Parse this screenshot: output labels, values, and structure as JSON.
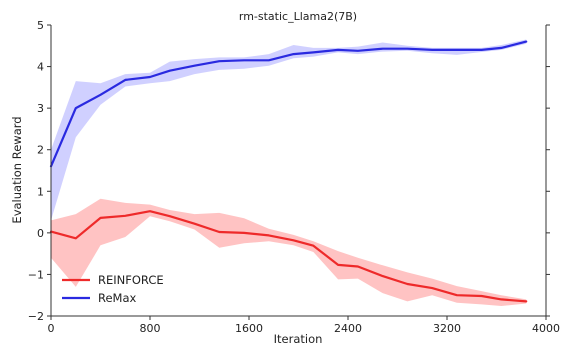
{
  "chart_data": {
    "type": "line",
    "title": "rm-static_Llama2(7B)",
    "xlabel": "Iteration",
    "ylabel": "Evaluation Reward",
    "xlim": [
      0,
      4000
    ],
    "ylim": [
      -2,
      5
    ],
    "xticks": [
      0,
      800,
      1600,
      2400,
      3200,
      4000
    ],
    "yticks": [
      -2,
      -1,
      0,
      1,
      2,
      3,
      4,
      5
    ],
    "xtick_labels": [
      "0",
      "800",
      "1600",
      "2400",
      "3200",
      "4000"
    ],
    "ytick_labels": [
      "−2",
      "−1",
      "0",
      "1",
      "2",
      "3",
      "4",
      "5"
    ],
    "grid": false,
    "legend_position": "lower-left",
    "series": [
      {
        "name": "REINFORCE",
        "color": "#ee2a2a",
        "band_color": "#ffb8b8",
        "x": [
          0,
          200,
          400,
          600,
          800,
          960,
          1160,
          1360,
          1560,
          1760,
          1960,
          2120,
          2320,
          2480,
          2680,
          2880,
          3080,
          3280,
          3480,
          3640,
          3840
        ],
        "values": [
          0.03,
          -0.13,
          0.36,
          0.41,
          0.52,
          0.4,
          0.22,
          0.02,
          0.0,
          -0.06,
          -0.18,
          -0.31,
          -0.77,
          -0.81,
          -1.04,
          -1.23,
          -1.33,
          -1.5,
          -1.52,
          -1.6,
          -1.65
        ],
        "lower": [
          -0.6,
          -1.3,
          -0.3,
          -0.1,
          0.4,
          0.28,
          0.08,
          -0.36,
          -0.25,
          -0.2,
          -0.3,
          -0.46,
          -1.12,
          -1.1,
          -1.45,
          -1.65,
          -1.5,
          -1.68,
          -1.72,
          -1.76,
          -1.7
        ],
        "upper": [
          0.3,
          0.45,
          0.82,
          0.72,
          0.68,
          0.55,
          0.45,
          0.48,
          0.35,
          0.1,
          -0.05,
          -0.2,
          -0.44,
          -0.6,
          -0.78,
          -0.95,
          -1.1,
          -1.28,
          -1.4,
          -1.5,
          -1.6
        ]
      },
      {
        "name": "ReMax",
        "color": "#2a2ae0",
        "band_color": "#c8c8ff",
        "x": [
          0,
          200,
          400,
          600,
          800,
          960,
          1160,
          1360,
          1560,
          1760,
          1960,
          2120,
          2320,
          2480,
          2680,
          2880,
          3080,
          3280,
          3480,
          3640,
          3840
        ],
        "values": [
          1.6,
          3.0,
          3.32,
          3.68,
          3.75,
          3.9,
          4.02,
          4.13,
          4.15,
          4.15,
          4.3,
          4.34,
          4.4,
          4.38,
          4.43,
          4.43,
          4.4,
          4.4,
          4.4,
          4.45,
          4.6
        ],
        "lower": [
          0.3,
          2.3,
          3.08,
          3.52,
          3.6,
          3.65,
          3.82,
          3.92,
          3.95,
          4.02,
          4.2,
          4.24,
          4.34,
          4.3,
          4.36,
          4.38,
          4.32,
          4.28,
          4.35,
          4.4,
          4.55
        ],
        "upper": [
          2.0,
          3.65,
          3.6,
          3.82,
          3.85,
          4.12,
          4.18,
          4.22,
          4.22,
          4.3,
          4.52,
          4.45,
          4.45,
          4.48,
          4.58,
          4.5,
          4.45,
          4.45,
          4.45,
          4.52,
          4.65
        ]
      }
    ]
  }
}
